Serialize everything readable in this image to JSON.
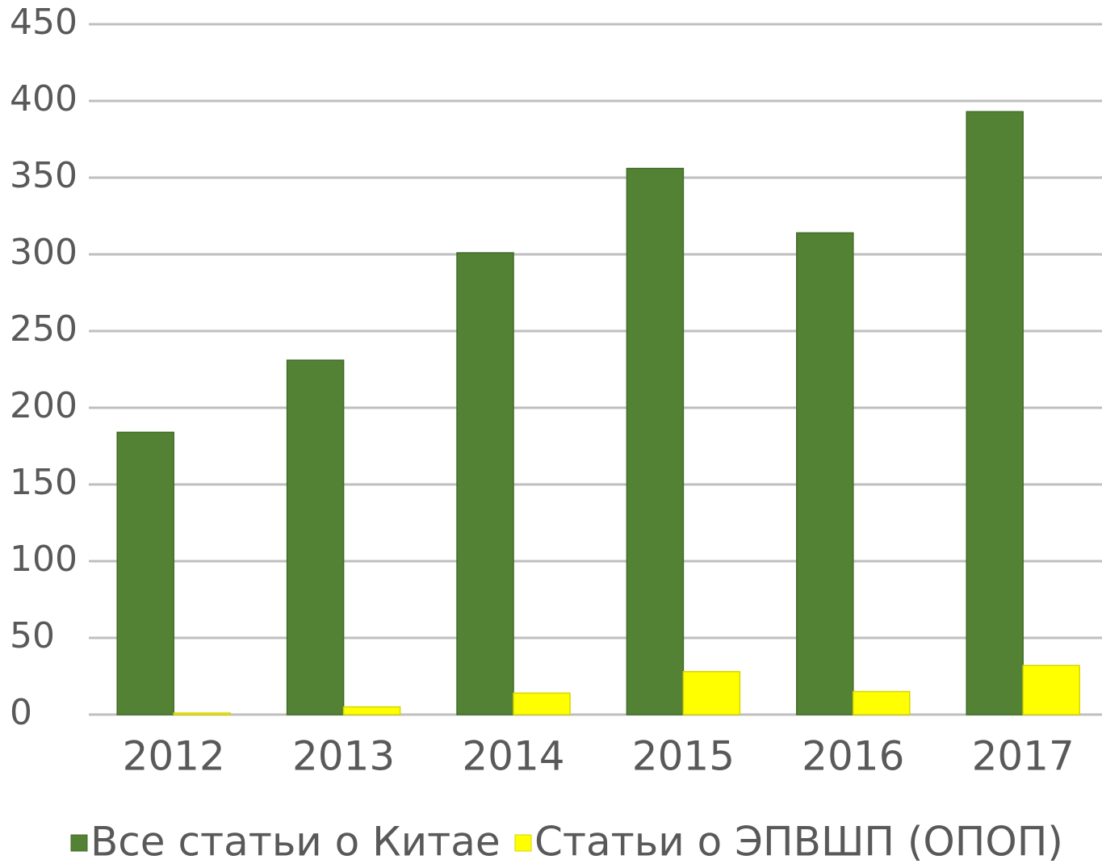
{
  "chart_data": {
    "type": "bar",
    "categories": [
      "2012",
      "2013",
      "2014",
      "2015",
      "2016",
      "2017"
    ],
    "series": [
      {
        "name": "Все статьи о Китае",
        "color": "#548235",
        "values": [
          184,
          231,
          301,
          356,
          314,
          393
        ]
      },
      {
        "name": "Статьи о ЭПВШП (ОПОП)",
        "color": "#ffff00",
        "values": [
          1,
          5,
          14,
          28,
          15,
          32
        ]
      }
    ],
    "ylim": [
      0,
      450
    ],
    "yticks": [
      0,
      50,
      100,
      150,
      200,
      250,
      300,
      350,
      400,
      450
    ],
    "grid": true,
    "legend": "bottom"
  }
}
